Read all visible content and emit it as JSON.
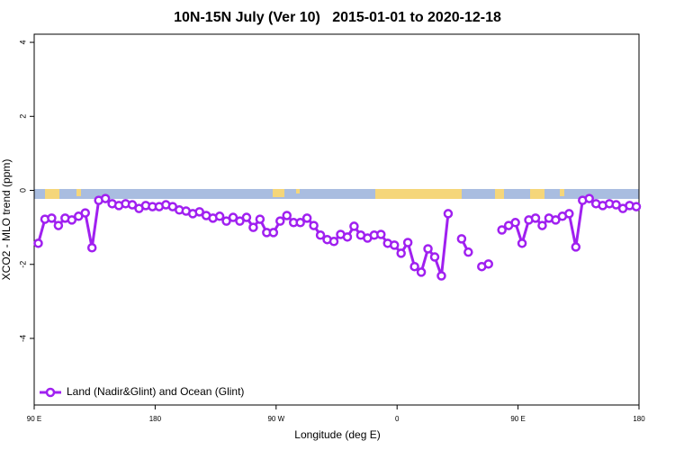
{
  "chart_data": {
    "type": "line",
    "title": "10N-15N July (Ver 10)   2015-01-01 to 2020-12-18",
    "x_label": "Longitude (deg E)",
    "y_label": "XCO2 - MLO trend (ppm)",
    "xlim": [
      90,
      540
    ],
    "xticks": [
      {
        "value": 90,
        "label": "90 E"
      },
      180,
      {
        "value": 270,
        "label": "90 W"
      },
      {
        "value": 360,
        "label": "0"
      },
      {
        "value": 450,
        "label": "90 E"
      },
      {
        "value": 540,
        "label": "180"
      }
    ],
    "ylim": [
      -5.8,
      4.22
    ],
    "yticks": [
      -4,
      -2,
      0,
      2,
      4
    ],
    "legend": "bottom-left",
    "x": [
      93,
      98,
      103,
      108,
      113,
      118,
      123,
      128,
      133,
      138,
      143,
      148,
      153,
      158,
      163,
      168,
      173,
      178,
      183,
      188,
      193,
      198,
      203,
      208,
      213,
      218,
      223,
      228,
      233,
      238,
      243,
      248,
      253,
      258,
      263,
      268,
      273,
      278,
      283,
      288,
      293,
      298,
      303,
      308,
      313,
      318,
      323,
      328,
      333,
      338,
      343,
      348,
      353,
      358,
      363,
      368,
      373,
      378,
      383,
      388,
      393,
      398,
      403,
      408,
      413,
      418,
      423,
      428,
      433,
      438,
      443,
      448,
      453,
      458,
      463,
      468,
      473,
      478,
      483,
      488,
      493,
      498,
      503,
      508,
      513,
      518,
      523,
      528,
      533,
      538
    ],
    "series": [
      {
        "name": "Land (Nadir&Glint) and Ocean (Glint)",
        "color": "#a020f0",
        "values": [
          -1.43,
          -0.78,
          -0.75,
          -0.95,
          -0.75,
          -0.8,
          -0.7,
          -0.61,
          -1.55,
          -0.27,
          -0.22,
          -0.36,
          -0.41,
          -0.36,
          -0.39,
          -0.49,
          -0.41,
          -0.44,
          -0.44,
          -0.39,
          -0.44,
          -0.53,
          -0.56,
          -0.63,
          -0.58,
          -0.68,
          -0.75,
          -0.7,
          -0.83,
          -0.73,
          -0.83,
          -0.73,
          -1.0,
          -0.78,
          -1.14,
          -1.14,
          -0.83,
          -0.68,
          -0.87,
          -0.87,
          -0.75,
          -0.95,
          -1.21,
          -1.33,
          -1.38,
          -1.19,
          -1.26,
          -0.97,
          -1.21,
          -1.29,
          -1.21,
          -1.19,
          -1.43,
          -1.48,
          -1.7,
          -1.41,
          -2.06,
          -2.21,
          -1.58,
          -1.8,
          -2.31,
          -0.63,
          null,
          -1.31,
          -1.67,
          null,
          -2.06,
          -1.99,
          null,
          -1.07,
          -0.95,
          -0.87,
          -1.43,
          -0.8,
          -0.75,
          -0.95,
          -0.75,
          -0.8,
          -0.7,
          -0.63,
          -1.53,
          -0.27,
          -0.22,
          -0.36,
          -0.41,
          -0.36,
          -0.39,
          -0.49,
          -0.41,
          -0.44
        ]
      }
    ]
  }
}
